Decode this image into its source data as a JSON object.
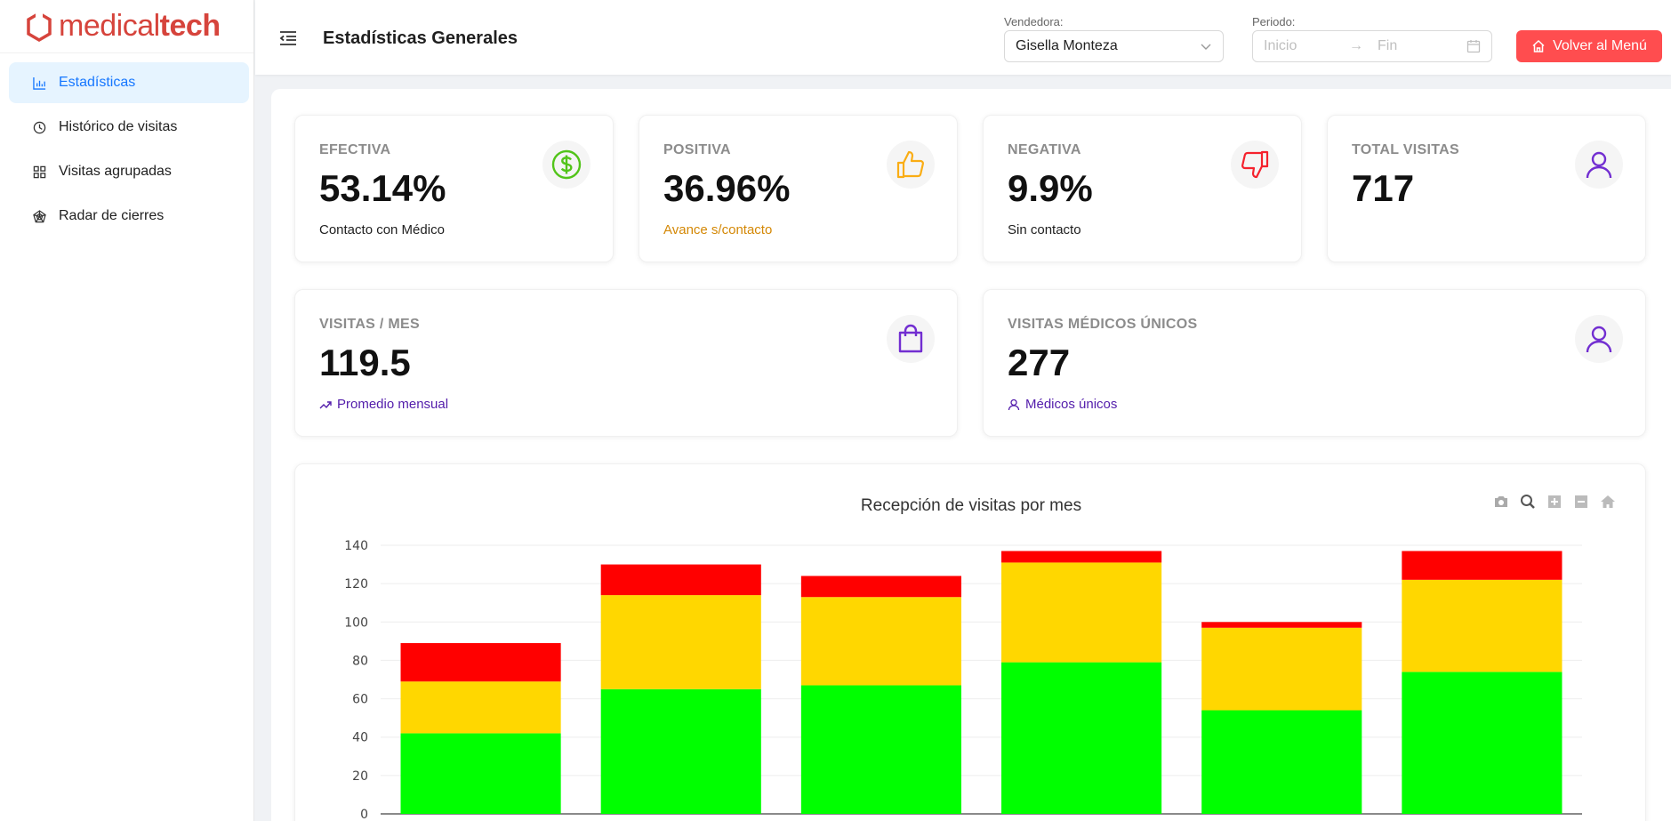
{
  "brand": {
    "name_light": "medical",
    "name_bold": "tech",
    "color": "#d6443c"
  },
  "sidebar": {
    "items": [
      {
        "label": "Estadísticas",
        "icon": "bar-chart-icon",
        "active": true
      },
      {
        "label": "Histórico de visitas",
        "icon": "clock-icon",
        "active": false
      },
      {
        "label": "Visitas agrupadas",
        "icon": "grid-icon",
        "active": false
      },
      {
        "label": "Radar de cierres",
        "icon": "radar-icon",
        "active": false
      }
    ]
  },
  "header": {
    "title": "Estadísticas Generales",
    "seller_label": "Vendedora:",
    "seller_value": "Gisella Monteza",
    "period_label": "Periodo:",
    "period_start_placeholder": "Inicio",
    "period_end_placeholder": "Fin",
    "back_button": "Volver al Menú"
  },
  "cards": {
    "efectiva": {
      "label": "EFECTIVA",
      "value": "53.14%",
      "sub": "Contacto con Médico",
      "icon": "dollar-circle-icon",
      "accent": "#52c41a"
    },
    "positiva": {
      "label": "POSITIVA",
      "value": "36.96%",
      "sub": "Avance s/contacto",
      "icon": "thumbs-up-icon",
      "accent": "#faad14"
    },
    "negativa": {
      "label": "NEGATIVA",
      "value": "9.9%",
      "sub": "Sin contacto",
      "icon": "thumbs-down-icon",
      "accent": "#f5222d"
    },
    "total": {
      "label": "TOTAL VISITAS",
      "value": "717",
      "icon": "user-icon",
      "accent": "#722ed1"
    },
    "visitas_mes": {
      "label": "VISITAS / MES",
      "value": "119.5",
      "sub": "Promedio mensual",
      "icon": "shopping-bag-icon",
      "accent": "#722ed1"
    },
    "medicos_unicos": {
      "label": "VISITAS MÉDICOS ÚNICOS",
      "value": "277",
      "sub": "Médicos únicos",
      "icon": "user-icon",
      "accent": "#722ed1"
    }
  },
  "chart_data": {
    "type": "bar",
    "stacked": true,
    "title": "Recepción de visitas por mes",
    "xlabel": "",
    "ylabel": "",
    "ylim": [
      0,
      140
    ],
    "yticks": [
      0,
      20,
      40,
      60,
      80,
      100,
      120,
      140
    ],
    "grid": true,
    "categories": [
      "",
      "",
      "",
      "",
      "",
      ""
    ],
    "series": [
      {
        "values": [
          42,
          65,
          67,
          79,
          54,
          74
        ],
        "color": "#00ff00"
      },
      {
        "values": [
          27,
          49,
          46,
          52,
          43,
          48
        ],
        "color": "#ffd700"
      },
      {
        "values": [
          20,
          16,
          11,
          6,
          3,
          15
        ],
        "color": "#ff0000"
      }
    ]
  }
}
